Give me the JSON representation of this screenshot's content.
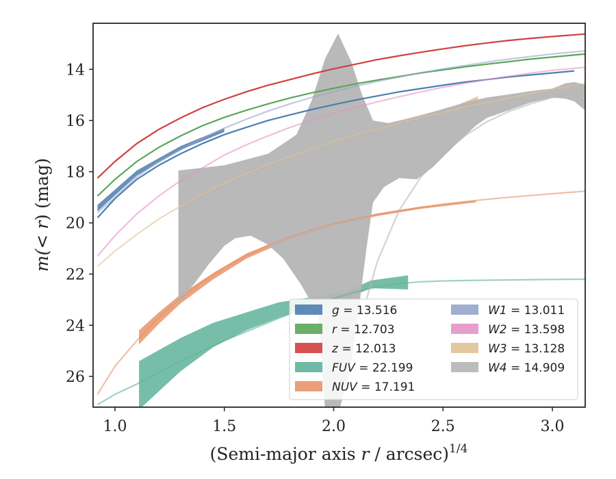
{
  "chart_data": {
    "type": "line",
    "xlabel_main": "(Semi-major axis ",
    "xlabel_var": "r",
    "xlabel_unit": " / arcsec)",
    "xlabel_sup": "1/4",
    "ylabel_prefix": "m(< ",
    "ylabel_var": "r",
    "ylabel_suffix": ") (mag)",
    "xlim": [
      0.9,
      3.15
    ],
    "ylim": [
      27.2,
      12.2
    ],
    "y_inverted": true,
    "xticks": [
      1.0,
      1.5,
      2.0,
      2.5,
      3.0
    ],
    "xtick_labels": [
      "1.0",
      "1.5",
      "2.0",
      "2.5",
      "3.0"
    ],
    "yticks": [
      14,
      16,
      18,
      20,
      22,
      24,
      26
    ],
    "ytick_labels": [
      "14",
      "16",
      "18",
      "20",
      "22",
      "24",
      "26"
    ],
    "legend_position": "lower-right",
    "series": [
      {
        "name": "g",
        "label_value": "13.516",
        "italic": true,
        "color": "#4c7eb0",
        "data": [
          [
            0.92,
            19.8
          ],
          [
            1.0,
            19.05
          ],
          [
            1.1,
            18.3
          ],
          [
            1.2,
            17.75
          ],
          [
            1.3,
            17.3
          ],
          [
            1.4,
            16.9
          ],
          [
            1.5,
            16.55
          ],
          [
            1.6,
            16.27
          ],
          [
            1.7,
            16.0
          ],
          [
            1.8,
            15.78
          ],
          [
            1.9,
            15.57
          ],
          [
            2.0,
            15.38
          ],
          [
            2.1,
            15.2
          ],
          [
            2.2,
            15.04
          ],
          [
            2.3,
            14.88
          ],
          [
            2.4,
            14.75
          ],
          [
            2.5,
            14.62
          ],
          [
            2.6,
            14.5
          ],
          [
            2.7,
            14.4
          ],
          [
            2.8,
            14.3
          ],
          [
            2.9,
            14.22
          ],
          [
            3.0,
            14.14
          ],
          [
            3.1,
            14.06
          ]
        ],
        "band": [
          [
            0.92,
            19.3,
            19.55
          ],
          [
            1.1,
            17.95,
            18.15
          ],
          [
            1.3,
            17.0,
            17.15
          ],
          [
            1.5,
            16.3,
            16.45
          ]
        ]
      },
      {
        "name": "r",
        "label_value": "12.703",
        "italic": true,
        "color": "#5aa65a",
        "data": [
          [
            0.92,
            18.95
          ],
          [
            1.0,
            18.3
          ],
          [
            1.1,
            17.6
          ],
          [
            1.2,
            17.05
          ],
          [
            1.3,
            16.6
          ],
          [
            1.4,
            16.2
          ],
          [
            1.5,
            15.88
          ],
          [
            1.6,
            15.6
          ],
          [
            1.7,
            15.35
          ],
          [
            1.8,
            15.12
          ],
          [
            1.9,
            14.92
          ],
          [
            2.0,
            14.74
          ],
          [
            2.1,
            14.57
          ],
          [
            2.2,
            14.42
          ],
          [
            2.3,
            14.28
          ],
          [
            2.4,
            14.14
          ],
          [
            2.5,
            14.02
          ],
          [
            2.6,
            13.9
          ],
          [
            2.7,
            13.8
          ],
          [
            2.8,
            13.7
          ],
          [
            2.9,
            13.6
          ],
          [
            3.0,
            13.52
          ],
          [
            3.15,
            13.4
          ]
        ]
      },
      {
        "name": "z",
        "label_value": "12.013",
        "italic": true,
        "color": "#d13f3f",
        "data": [
          [
            0.92,
            18.25
          ],
          [
            1.0,
            17.6
          ],
          [
            1.1,
            16.9
          ],
          [
            1.2,
            16.35
          ],
          [
            1.3,
            15.9
          ],
          [
            1.4,
            15.5
          ],
          [
            1.5,
            15.17
          ],
          [
            1.6,
            14.88
          ],
          [
            1.7,
            14.62
          ],
          [
            1.8,
            14.4
          ],
          [
            1.9,
            14.18
          ],
          [
            2.0,
            13.98
          ],
          [
            2.1,
            13.8
          ],
          [
            2.2,
            13.62
          ],
          [
            2.3,
            13.47
          ],
          [
            2.4,
            13.33
          ],
          [
            2.5,
            13.2
          ],
          [
            2.6,
            13.08
          ],
          [
            2.7,
            12.97
          ],
          [
            2.8,
            12.87
          ],
          [
            2.9,
            12.79
          ],
          [
            3.0,
            12.72
          ],
          [
            3.15,
            12.62
          ]
        ]
      },
      {
        "name": "FUV",
        "label_value": "22.199",
        "italic": true,
        "color": "#5fb39a",
        "data": [
          [
            0.92,
            27.1
          ],
          [
            1.0,
            26.7
          ],
          [
            1.1,
            26.3
          ],
          [
            1.2,
            25.85
          ],
          [
            1.3,
            25.4
          ],
          [
            1.4,
            25.0
          ],
          [
            1.5,
            24.6
          ],
          [
            1.6,
            24.25
          ],
          [
            1.7,
            23.9
          ],
          [
            1.8,
            23.55
          ],
          [
            1.9,
            23.25
          ],
          [
            2.0,
            22.95
          ],
          [
            2.1,
            22.7
          ],
          [
            2.2,
            22.5
          ],
          [
            2.3,
            22.37
          ],
          [
            2.4,
            22.3
          ],
          [
            2.5,
            22.27
          ],
          [
            2.6,
            22.25
          ],
          [
            2.8,
            22.23
          ],
          [
            3.0,
            22.21
          ],
          [
            3.15,
            22.2
          ]
        ],
        "band": [
          [
            1.11,
            25.4,
            27.3
          ],
          [
            1.3,
            24.5,
            25.8
          ],
          [
            1.45,
            23.9,
            24.85
          ],
          [
            1.6,
            23.5,
            24.2
          ],
          [
            1.75,
            23.1,
            23.7
          ],
          [
            1.9,
            22.9,
            23.3
          ],
          [
            2.05,
            22.7,
            23.0
          ],
          [
            2.17,
            22.25,
            22.55
          ],
          [
            2.34,
            22.05,
            22.6
          ]
        ]
      },
      {
        "name": "NUV",
        "label_value": "17.191",
        "italic": true,
        "color": "#e8956a",
        "data": [
          [
            0.92,
            26.7
          ],
          [
            1.0,
            25.6
          ],
          [
            1.1,
            24.6
          ],
          [
            1.2,
            23.7
          ],
          [
            1.3,
            22.95
          ],
          [
            1.4,
            22.3
          ],
          [
            1.5,
            21.75
          ],
          [
            1.6,
            21.28
          ],
          [
            1.7,
            20.88
          ],
          [
            1.8,
            20.55
          ],
          [
            1.9,
            20.27
          ],
          [
            2.0,
            20.04
          ],
          [
            2.1,
            19.84
          ],
          [
            2.2,
            19.67
          ],
          [
            2.3,
            19.52
          ],
          [
            2.4,
            19.39
          ],
          [
            2.5,
            19.27
          ],
          [
            2.6,
            19.17
          ],
          [
            2.7,
            19.08
          ],
          [
            2.8,
            19.0
          ],
          [
            2.9,
            18.93
          ],
          [
            3.0,
            18.86
          ],
          [
            3.15,
            18.76
          ]
        ],
        "band": [
          [
            1.11,
            24.2,
            24.75
          ],
          [
            1.2,
            23.5,
            23.95
          ],
          [
            1.3,
            22.8,
            23.15
          ],
          [
            1.45,
            21.95,
            22.2
          ],
          [
            1.6,
            21.2,
            21.4
          ],
          [
            1.8,
            20.5,
            20.65
          ],
          [
            2.0,
            20.0,
            20.12
          ],
          [
            2.2,
            19.63,
            19.73
          ],
          [
            2.4,
            19.36,
            19.45
          ],
          [
            2.65,
            19.12,
            19.2
          ]
        ]
      },
      {
        "name": "W1",
        "label_value": "13.011",
        "italic": true,
        "color": "#94a6cc",
        "data": [
          [
            0.92,
            19.6
          ],
          [
            1.0,
            19.0
          ],
          [
            1.1,
            18.2
          ],
          [
            1.2,
            17.6
          ],
          [
            1.3,
            17.15
          ],
          [
            1.4,
            16.7
          ],
          [
            1.5,
            16.3
          ],
          [
            1.6,
            15.95
          ],
          [
            1.7,
            15.63
          ],
          [
            1.8,
            15.35
          ],
          [
            1.9,
            15.1
          ],
          [
            2.0,
            14.87
          ],
          [
            2.1,
            14.66
          ],
          [
            2.2,
            14.47
          ],
          [
            2.3,
            14.3
          ],
          [
            2.4,
            14.13
          ],
          [
            2.5,
            13.98
          ],
          [
            2.6,
            13.85
          ],
          [
            2.7,
            13.72
          ],
          [
            2.8,
            13.6
          ],
          [
            2.9,
            13.5
          ],
          [
            3.0,
            13.4
          ],
          [
            3.15,
            13.28
          ]
        ]
      },
      {
        "name": "W2",
        "label_value": "13.598",
        "italic": true,
        "color": "#e393c6",
        "data": [
          [
            0.92,
            21.3
          ],
          [
            1.0,
            20.5
          ],
          [
            1.1,
            19.65
          ],
          [
            1.2,
            18.95
          ],
          [
            1.3,
            18.35
          ],
          [
            1.4,
            17.85
          ],
          [
            1.5,
            17.35
          ],
          [
            1.6,
            16.95
          ],
          [
            1.7,
            16.6
          ],
          [
            1.8,
            16.27
          ],
          [
            1.9,
            15.98
          ],
          [
            2.0,
            15.72
          ],
          [
            2.1,
            15.48
          ],
          [
            2.2,
            15.27
          ],
          [
            2.3,
            15.07
          ],
          [
            2.4,
            14.88
          ],
          [
            2.5,
            14.7
          ],
          [
            2.6,
            14.55
          ],
          [
            2.7,
            14.4
          ],
          [
            2.8,
            14.27
          ],
          [
            2.9,
            14.15
          ],
          [
            3.0,
            14.04
          ],
          [
            3.15,
            13.92
          ]
        ]
      },
      {
        "name": "W3",
        "label_value": "13.128",
        "italic": true,
        "color": "#e0c196",
        "data": [
          [
            0.92,
            21.7
          ],
          [
            1.0,
            21.1
          ],
          [
            1.1,
            20.45
          ],
          [
            1.2,
            19.85
          ],
          [
            1.3,
            19.35
          ],
          [
            1.4,
            18.88
          ],
          [
            1.5,
            18.45
          ],
          [
            1.6,
            18.08
          ],
          [
            1.7,
            17.72
          ],
          [
            1.8,
            17.4
          ],
          [
            1.9,
            17.1
          ],
          [
            2.0,
            16.82
          ],
          [
            2.1,
            16.56
          ],
          [
            2.2,
            16.33
          ],
          [
            2.3,
            16.1
          ],
          [
            2.4,
            15.88
          ],
          [
            2.5,
            15.68
          ],
          [
            2.6,
            15.48
          ],
          [
            2.7,
            15.3
          ],
          [
            2.8,
            15.12
          ],
          [
            2.9,
            14.95
          ],
          [
            3.0,
            14.78
          ],
          [
            3.15,
            14.55
          ]
        ],
        "band": [
          [
            1.3,
            19.25,
            19.45
          ],
          [
            1.6,
            18.0,
            18.15
          ],
          [
            1.9,
            17.05,
            17.15
          ],
          [
            2.2,
            16.25,
            16.4
          ],
          [
            2.4,
            15.78,
            15.98
          ],
          [
            2.55,
            15.45,
            15.65
          ],
          [
            2.66,
            15.05,
            15.5
          ]
        ]
      },
      {
        "name": "W4",
        "label_value": "14.909",
        "italic": true,
        "color": "#b5b5b5",
        "data": [
          [
            2.15,
            23.0
          ],
          [
            2.2,
            21.5
          ],
          [
            2.3,
            19.5
          ],
          [
            2.4,
            18.2
          ],
          [
            2.5,
            17.3
          ],
          [
            2.6,
            16.6
          ],
          [
            2.7,
            16.05
          ],
          [
            2.8,
            15.65
          ],
          [
            2.9,
            15.35
          ],
          [
            3.0,
            15.1
          ],
          [
            3.15,
            14.9
          ]
        ],
        "band_upper": [
          [
            1.29,
            17.95
          ],
          [
            1.5,
            17.75
          ],
          [
            1.7,
            17.3
          ],
          [
            1.83,
            16.55
          ],
          [
            1.9,
            15.2
          ],
          [
            1.96,
            13.6
          ],
          [
            2.02,
            12.6
          ],
          [
            2.08,
            13.7
          ],
          [
            2.13,
            15.0
          ],
          [
            2.18,
            16.0
          ],
          [
            2.25,
            16.1
          ],
          [
            2.4,
            15.8
          ],
          [
            2.5,
            15.55
          ],
          [
            2.6,
            15.3
          ],
          [
            2.7,
            15.1
          ],
          [
            2.8,
            14.98
          ],
          [
            2.9,
            14.85
          ],
          [
            3.0,
            14.75
          ],
          [
            3.06,
            14.55
          ],
          [
            3.1,
            14.5
          ],
          [
            3.15,
            14.6
          ]
        ],
        "band_lower": [
          [
            3.15,
            15.6
          ],
          [
            3.1,
            15.25
          ],
          [
            3.06,
            15.15
          ],
          [
            3.0,
            15.1
          ],
          [
            2.9,
            15.3
          ],
          [
            2.8,
            15.6
          ],
          [
            2.7,
            15.9
          ],
          [
            2.65,
            16.2
          ],
          [
            2.55,
            17.0
          ],
          [
            2.45,
            17.85
          ],
          [
            2.38,
            18.3
          ],
          [
            2.3,
            18.25
          ],
          [
            2.23,
            18.6
          ],
          [
            2.18,
            19.2
          ],
          [
            2.15,
            21.0
          ],
          [
            2.12,
            23.0
          ],
          [
            2.08,
            25.5
          ],
          [
            2.03,
            27.2
          ],
          [
            1.96,
            27.2
          ],
          [
            1.93,
            23.6
          ],
          [
            1.85,
            22.4
          ],
          [
            1.77,
            21.4
          ],
          [
            1.7,
            20.85
          ],
          [
            1.62,
            20.5
          ],
          [
            1.55,
            20.6
          ],
          [
            1.5,
            20.9
          ],
          [
            1.43,
            21.6
          ],
          [
            1.37,
            22.3
          ],
          [
            1.33,
            22.7
          ],
          [
            1.29,
            23.2
          ]
        ]
      }
    ]
  }
}
